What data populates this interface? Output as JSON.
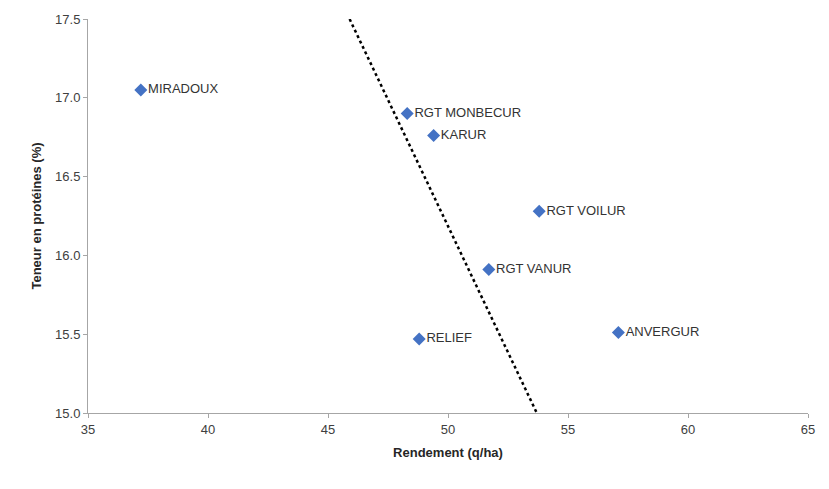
{
  "chart_data": {
    "type": "scatter",
    "x_label": "Rendement (q/ha)",
    "y_label": "Teneur en protéines (%)",
    "xlim": [
      35,
      65
    ],
    "xticks": [
      35,
      40,
      45,
      50,
      55,
      60,
      65
    ],
    "ylim": [
      15.0,
      17.5
    ],
    "yticks": [
      {
        "value": 15.0,
        "label": "15.0"
      },
      15.5,
      {
        "value": 16.0,
        "label": "16.0"
      },
      16.5,
      {
        "value": 17.0,
        "label": "17.0"
      },
      17.5
    ],
    "grid": false,
    "series": [
      {
        "type": "scatter",
        "marker": "diamond",
        "color": "#4472c4",
        "labels": [
          "MIRADOUX",
          "RGT MONBECUR",
          "KARUR",
          "RGT VOILUR",
          "RGT VANUR",
          "RELIEF",
          "ANVERGUR"
        ],
        "x": [
          37.2,
          48.3,
          49.4,
          53.8,
          51.7,
          48.8,
          57.1
        ],
        "values": [
          17.05,
          16.9,
          16.76,
          16.28,
          15.91,
          15.47,
          15.51
        ]
      },
      {
        "type": "line",
        "line_style": "dotted",
        "color": "#000000",
        "x": [
          45.9,
          53.7
        ],
        "values": [
          17.5,
          15.0
        ]
      }
    ]
  }
}
